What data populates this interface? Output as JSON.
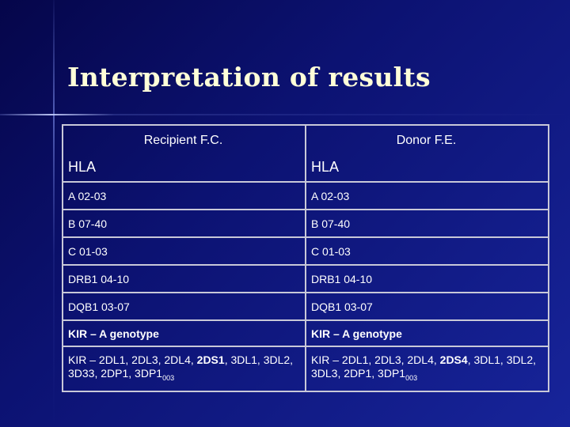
{
  "title": "Interpretation of results",
  "table": {
    "header": [
      "Recipient F.C.",
      "Donor F.E."
    ],
    "rows": [
      [
        "HLA",
        "HLA"
      ],
      [
        "A 02-03",
        "A 02-03"
      ],
      [
        "B 07-40",
        "B 07-40"
      ],
      [
        "C 01-03",
        "C 01-03"
      ],
      [
        "DRB1 04-10",
        "DRB1 04-10"
      ],
      [
        "DQB1 03-07",
        "DQB1 03-07"
      ],
      [
        "KIR – A genotype",
        "KIR – A genotype"
      ],
      [
        [
          "KIR – 2DL1, 2DL3, 2DL4, ",
          "2DS1",
          ", 3DL1, 3DL2, 3D33, 2DP1, 3DP1",
          "003"
        ],
        [
          "KIR – 2DL1, 2DL3, 2DL4, ",
          "2DS4",
          ", 3DL1, 3DL2, 3DL3, 2DP1, 3DP1",
          "003"
        ]
      ]
    ]
  }
}
